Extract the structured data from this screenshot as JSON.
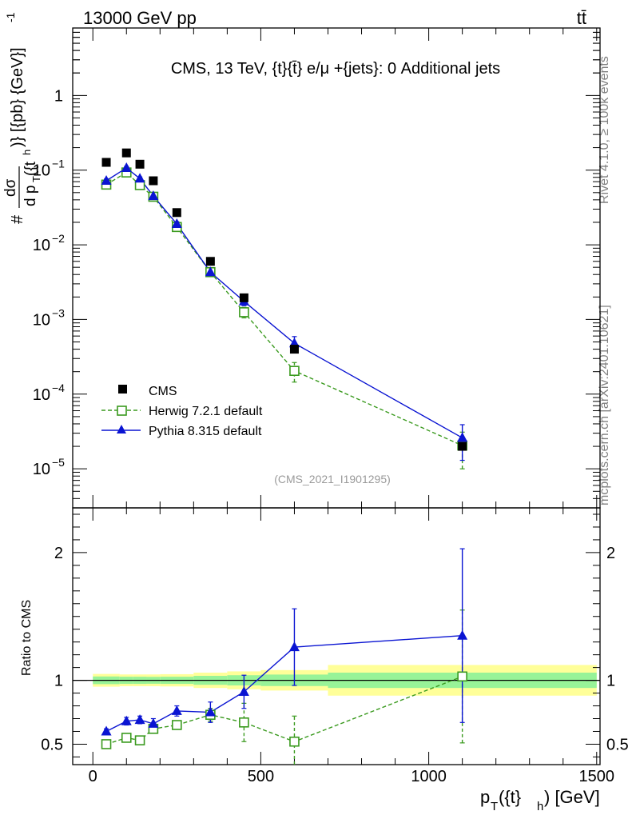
{
  "header": {
    "left": "13000 GeV pp",
    "right": "tt̄"
  },
  "side_texts": {
    "rivet": "Rivet 4.1.0, ≥ 100k events",
    "mcplots": "mcplots.cern.ch [arXiv:2401.10621]"
  },
  "chart_data": [
    {
      "type": "scatter",
      "title": "CMS, 13 TeV, {t}{t̄} e/μ +{jets}: 0 Additional jets",
      "ylabel": "#dσ/dp_T({t}_h)} [{pb} {GeV}⁻¹]",
      "ylabel_num": "dσ",
      "ylabel_den": "d p",
      "ylabel_den_sub": "T",
      "ylabel_den_paren": "({t",
      "ylabel_den_sub2": "h",
      "ylabel_prefix": "#",
      "ylabel_suffix": ")} [{pb} {GeV}]",
      "ylabel_exp": "-1",
      "yscale": "log",
      "ylim": [
        3e-06,
        8
      ],
      "xlim": [
        -60,
        1510
      ],
      "yticks": [
        {
          "base": "1",
          "exp": "",
          "value": 1
        },
        {
          "base": "10",
          "exp": "−1",
          "value": 0.1
        },
        {
          "base": "10",
          "exp": "−2",
          "value": 0.01
        },
        {
          "base": "10",
          "exp": "−3",
          "value": 0.001
        },
        {
          "base": "10",
          "exp": "−4",
          "value": 0.0001
        },
        {
          "base": "10",
          "exp": "−5",
          "value": 1e-05
        }
      ],
      "watermark": "(CMS_2021_I1901295)",
      "x": [
        40,
        100,
        140,
        180,
        250,
        350,
        450,
        600,
        1100
      ],
      "series": [
        {
          "name": "CMS",
          "color": "#000000",
          "marker": "filled-square",
          "values": [
            0.127,
            0.17,
            0.12,
            0.072,
            0.027,
            0.006,
            0.00195,
            0.0004,
            2e-05
          ]
        },
        {
          "name": "Herwig 7.2.1 default",
          "color": "#3a9a1e",
          "marker": "open-square",
          "line": "dashed",
          "values": [
            0.064,
            0.093,
            0.063,
            0.044,
            0.0173,
            0.0043,
            0.00125,
            0.000205,
            2.05e-05
          ],
          "err_lo": [
            0.004,
            0.005,
            0.004,
            0.003,
            0.0012,
            0.0003,
            0.0002,
            6e-05,
            1.05e-05
          ],
          "err_hi": [
            0.004,
            0.005,
            0.004,
            0.003,
            0.0012,
            0.0003,
            0.0002,
            6e-05,
            1.05e-05
          ]
        },
        {
          "name": "Pythia 8.315 default",
          "color": "#0a14d2",
          "marker": "filled-triangle",
          "line": "solid",
          "values": [
            0.072,
            0.107,
            0.077,
            0.045,
            0.019,
            0.0043,
            0.00175,
            0.00048,
            2.6e-05
          ],
          "err_lo": [
            0.004,
            0.005,
            0.004,
            0.003,
            0.0014,
            0.0003,
            0.00022,
            0.00011,
            1.3e-05
          ],
          "err_hi": [
            0.004,
            0.005,
            0.004,
            0.003,
            0.0014,
            0.0003,
            0.00022,
            0.00011,
            1.3e-05
          ]
        }
      ],
      "legend": [
        "CMS",
        "Herwig 7.2.1 default",
        "Pythia 8.315 default"
      ]
    },
    {
      "type": "scatter",
      "ylabel": "Ratio to CMS",
      "xlabel_main": "p",
      "xlabel_sub": "T",
      "xlabel_mid": "({t}",
      "xlabel_sub2": "h",
      "xlabel_end": ") [GeV]",
      "ylim": [
        0.34,
        2.35
      ],
      "yticks": [
        "0.5",
        "1",
        "2"
      ],
      "xticks": [
        "0",
        "500",
        "1000",
        "1500"
      ],
      "bands": {
        "edges": [
          0,
          80,
          120,
          160,
          200,
          300,
          400,
          500,
          700,
          1500
        ],
        "stat": [
          0.03,
          0.028,
          0.028,
          0.027,
          0.028,
          0.035,
          0.04,
          0.045,
          0.06
        ],
        "total": [
          0.05,
          0.046,
          0.046,
          0.046,
          0.048,
          0.06,
          0.07,
          0.08,
          0.12
        ]
      },
      "series": [
        {
          "name": "Herwig 7.2.1 default",
          "color": "#3a9a1e",
          "values": [
            0.5,
            0.55,
            0.53,
            0.62,
            0.65,
            0.73,
            0.67,
            0.52,
            1.03
          ],
          "err": [
            0.02,
            0.02,
            0.03,
            0.03,
            0.03,
            0.05,
            0.15,
            0.2,
            0.52
          ]
        },
        {
          "name": "Pythia 8.315 default",
          "color": "#0a14d2",
          "values": [
            0.6,
            0.68,
            0.69,
            0.66,
            0.76,
            0.75,
            0.91,
            1.26,
            1.35
          ],
          "err": [
            0.02,
            0.03,
            0.03,
            0.04,
            0.04,
            0.08,
            0.13,
            0.3,
            0.68
          ]
        }
      ]
    }
  ]
}
